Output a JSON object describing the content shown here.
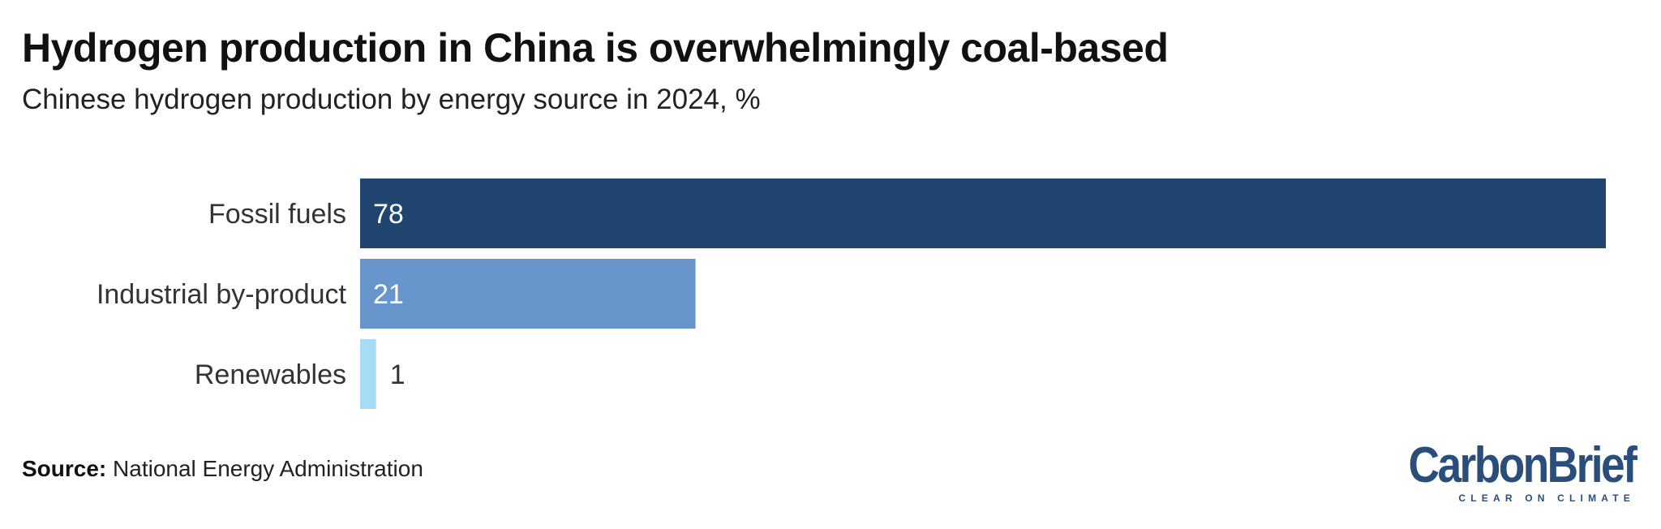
{
  "header": {
    "title": "Hydrogen production in China is overwhelmingly coal-based",
    "subtitle": "Chinese hydrogen production by energy source in 2024, %"
  },
  "footer": {
    "source_label": "Source:",
    "source_text": "National Energy Administration",
    "logo_text": "CarbonBrief",
    "logo_tagline": "CLEAR ON CLIMATE"
  },
  "colors": {
    "fossil": "#204570",
    "industrial": "#6895cc",
    "renewables": "#a6dcf5",
    "brand": "#2a4e7c"
  },
  "chart_data": {
    "type": "bar",
    "orientation": "horizontal",
    "title": "Hydrogen production in China is overwhelmingly coal-based",
    "subtitle": "Chinese hydrogen production by energy source in 2024, %",
    "categories": [
      "Fossil fuels",
      "Industrial by-product",
      "Renewables"
    ],
    "values": [
      78,
      21,
      1
    ],
    "colors": [
      "#204570",
      "#6895cc",
      "#a6dcf5"
    ],
    "xlim": [
      0,
      78
    ],
    "grid": false,
    "legend": "none"
  }
}
